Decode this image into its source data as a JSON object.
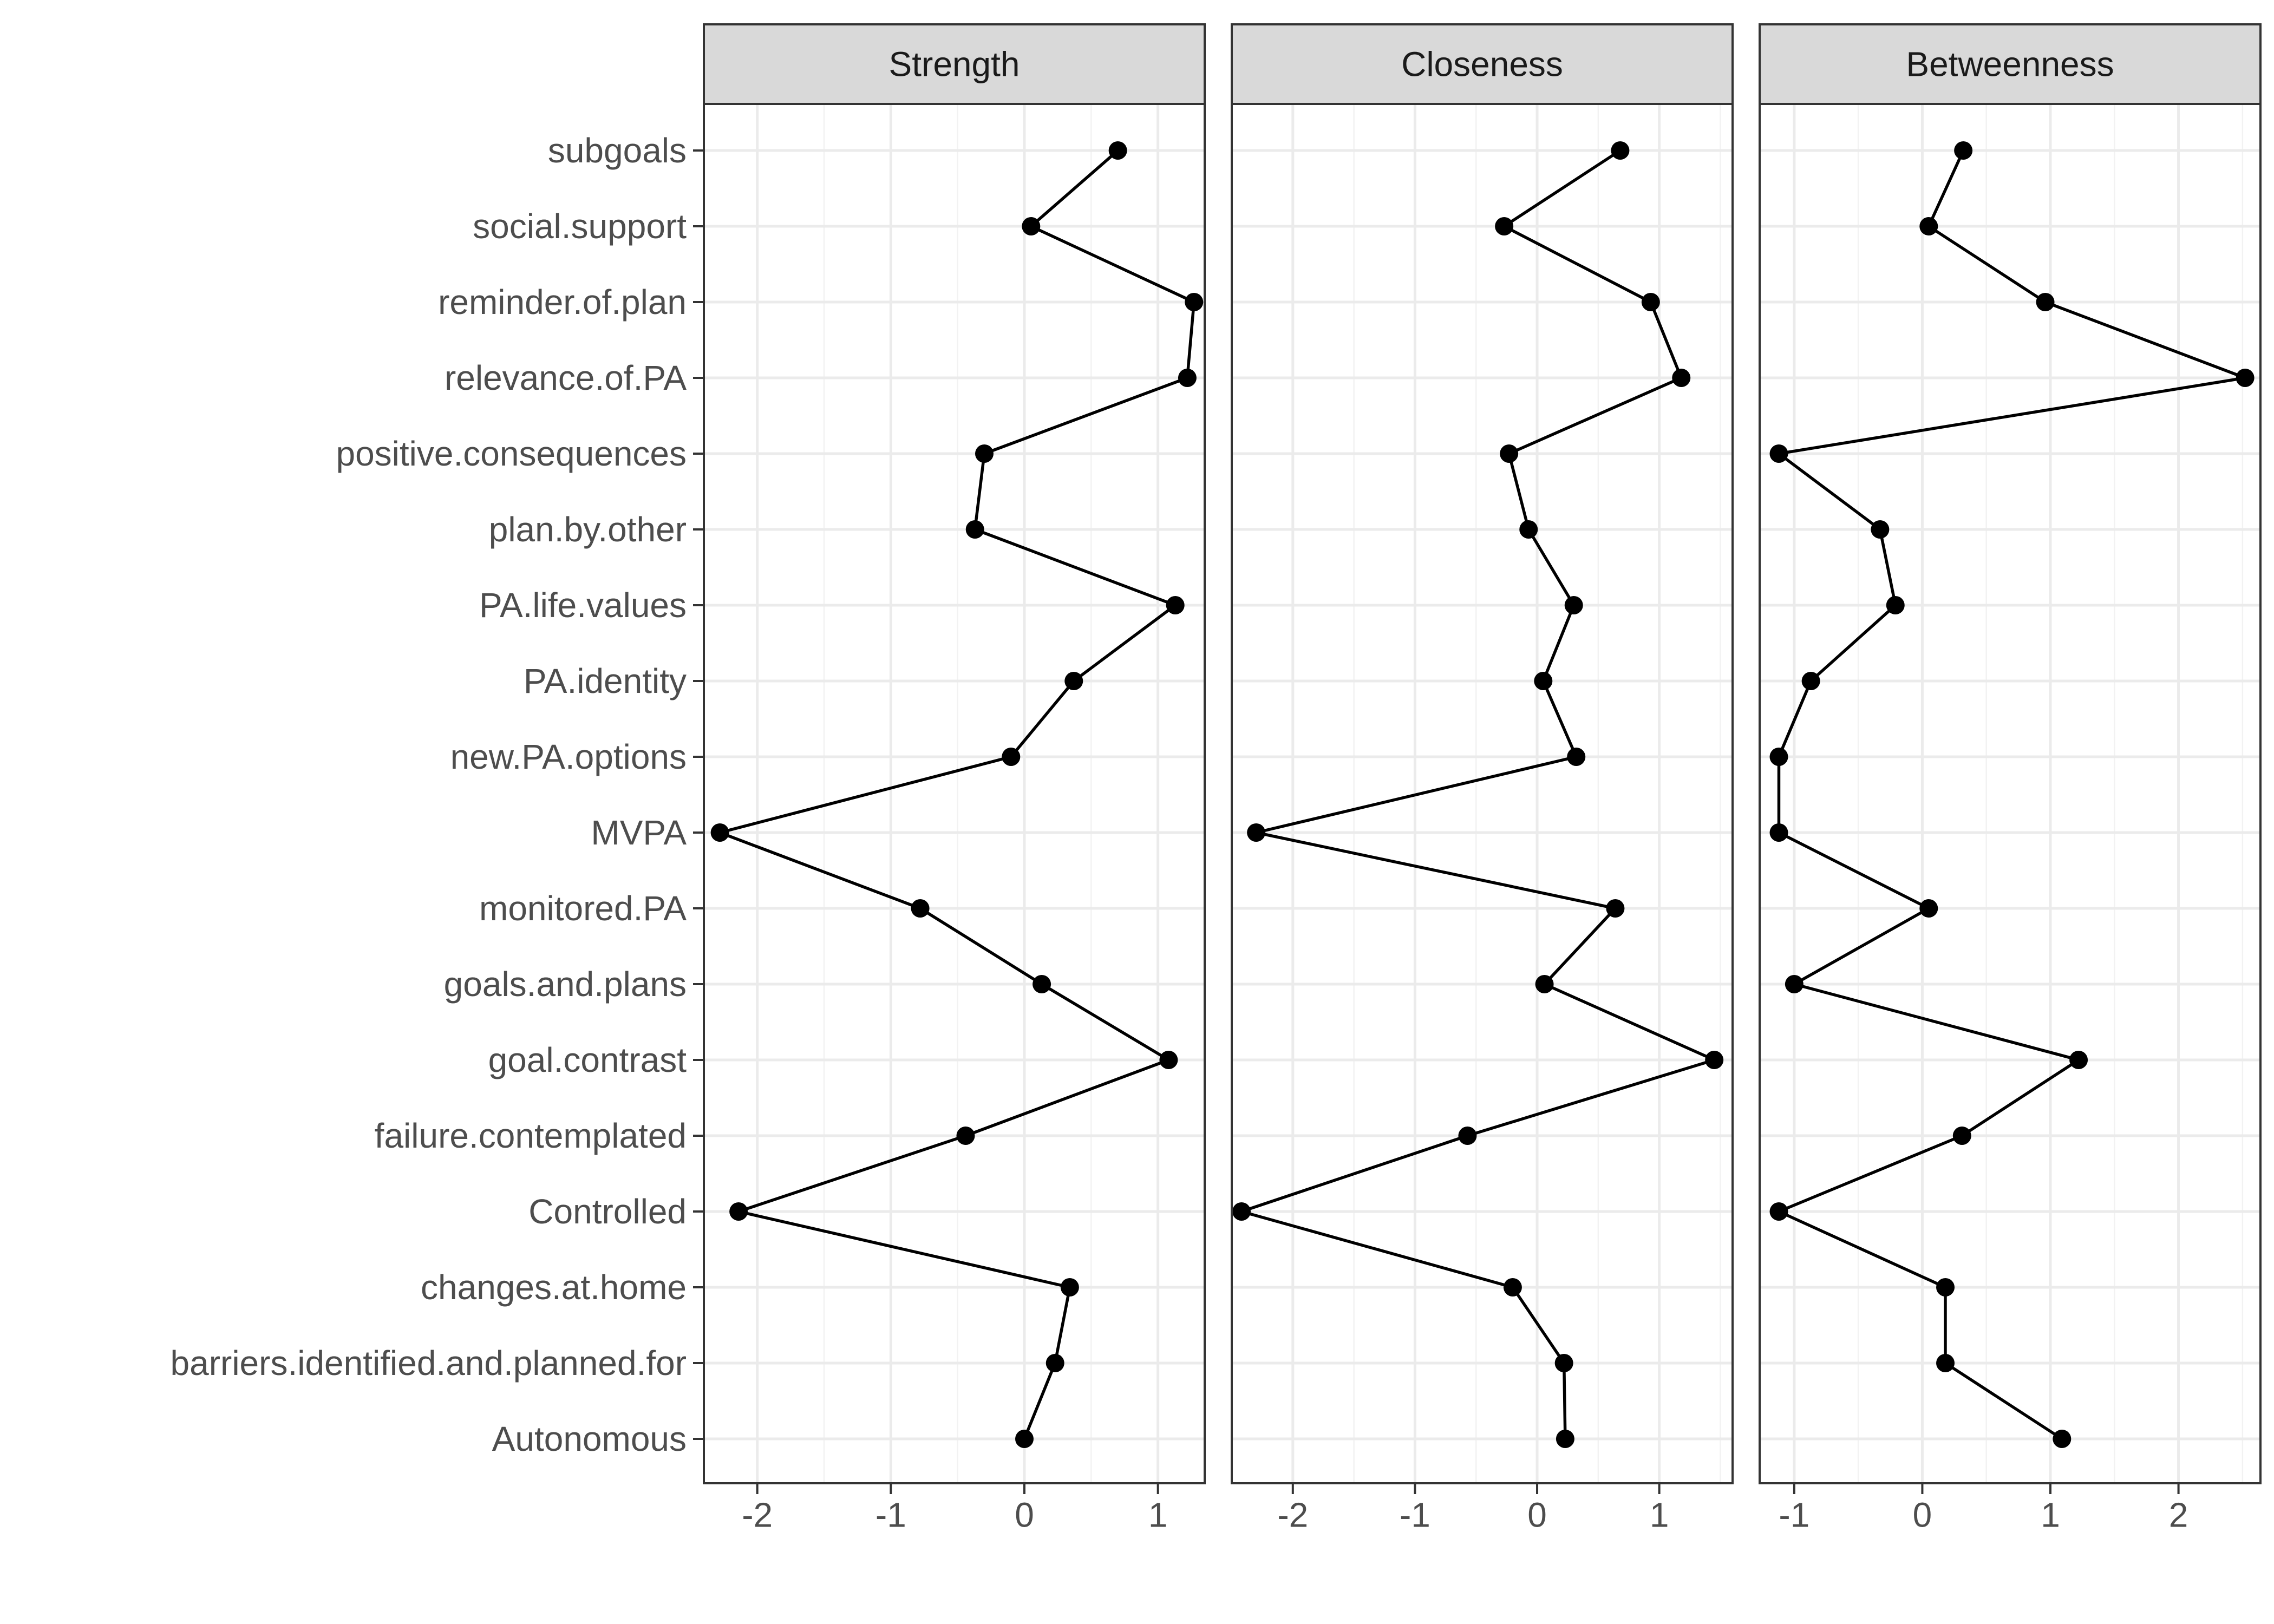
{
  "chart_data": {
    "type": "line",
    "orientation": "horizontal-facets",
    "categories": [
      "subgoals",
      "social.support",
      "reminder.of.plan",
      "relevance.of.PA",
      "positive.consequences",
      "plan.by.other",
      "PA.life.values",
      "PA.identity",
      "new.PA.options",
      "MVPA",
      "monitored.PA",
      "goals.and.plans",
      "goal.contrast",
      "failure.contemplated",
      "Controlled",
      "changes.at.home",
      "barriers.identified.and.planned.for",
      "Autonomous"
    ],
    "grid": true,
    "legend": "none",
    "colors": {
      "line": "#000000",
      "strip": "#d9d9d9",
      "grid": "#ebebeb",
      "border": "#333333"
    },
    "facets": [
      {
        "name": "Strength",
        "xlim": [
          -2.4,
          1.35
        ],
        "xticks": [
          -2,
          -1,
          0,
          1
        ],
        "xtick_labels": [
          "-2",
          "-1",
          "0",
          "1"
        ],
        "values": [
          0.7,
          0.05,
          1.27,
          1.22,
          -0.3,
          -0.37,
          1.13,
          0.37,
          -0.1,
          -2.28,
          -0.78,
          0.13,
          1.08,
          -0.44,
          -2.14,
          0.34,
          0.23,
          0.0
        ]
      },
      {
        "name": "Closeness",
        "xlim": [
          -2.5,
          1.6
        ],
        "xticks": [
          -2,
          -1,
          0,
          1
        ],
        "xtick_labels": [
          "-2",
          "-1",
          "0",
          "1"
        ],
        "values": [
          0.68,
          -0.27,
          0.93,
          1.18,
          -0.23,
          -0.07,
          0.3,
          0.05,
          0.32,
          -2.3,
          0.64,
          0.06,
          1.45,
          -0.57,
          -2.42,
          -0.2,
          0.22,
          0.23
        ]
      },
      {
        "name": "Betweenness",
        "xlim": [
          -1.27,
          2.64
        ],
        "xticks": [
          -1,
          0,
          1,
          2
        ],
        "xtick_labels": [
          "-1",
          "0",
          "1",
          "2"
        ],
        "values": [
          0.32,
          0.05,
          0.96,
          2.52,
          -1.12,
          -0.33,
          -0.21,
          -0.87,
          -1.12,
          -1.12,
          0.05,
          -1.0,
          1.22,
          0.31,
          -1.12,
          0.18,
          0.18,
          1.09
        ]
      }
    ]
  }
}
